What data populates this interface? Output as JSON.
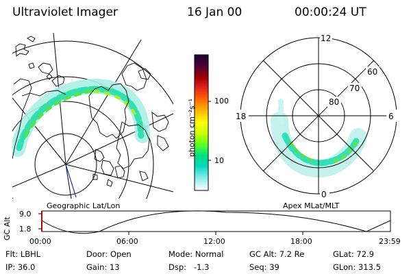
{
  "header": {
    "title": "Ultraviolet Imager",
    "date": "16 Jan 00",
    "time": "00:00:24 UT"
  },
  "left_panel": {
    "caption": "Geographic Lat/Lon"
  },
  "right_panel": {
    "caption": "Apex MLat/MLT",
    "mlt_labels": {
      "top": "12",
      "bottom": "0",
      "left": "18",
      "right": "6"
    },
    "lat_labels": [
      "60",
      "70",
      "80"
    ]
  },
  "colorbar": {
    "unit_label": "photon cm⁻²s⁻¹",
    "ticks": [
      "100",
      "10"
    ],
    "colors": [
      "#1a0033",
      "#3a0045",
      "#6a0020",
      "#a00000",
      "#d82020",
      "#ff6000",
      "#ff9a00",
      "#ffcc00",
      "#ffff00",
      "#ccff00",
      "#80ff00",
      "#30ff30",
      "#00e080",
      "#00d8c0",
      "#60e8e8",
      "#c0f4f4",
      "#ffffff"
    ]
  },
  "timeline": {
    "axis_label": "GC Alt",
    "y_ticks": [
      "9.0",
      "1.8"
    ],
    "x_ticks": [
      "00:00",
      "06:00",
      "12:00",
      "18:00",
      "23:59"
    ]
  },
  "info": {
    "row1": [
      "Flt: LBHL",
      "Door: Open",
      "Mode: Normal",
      "GC Alt: 7.2 Re",
      "GLat: 72.9"
    ],
    "row2": [
      "IP: 36.0",
      "Gain: 13",
      "Dsp:   -1.3",
      "Seq: 39",
      "GLon: 313.5"
    ]
  }
}
